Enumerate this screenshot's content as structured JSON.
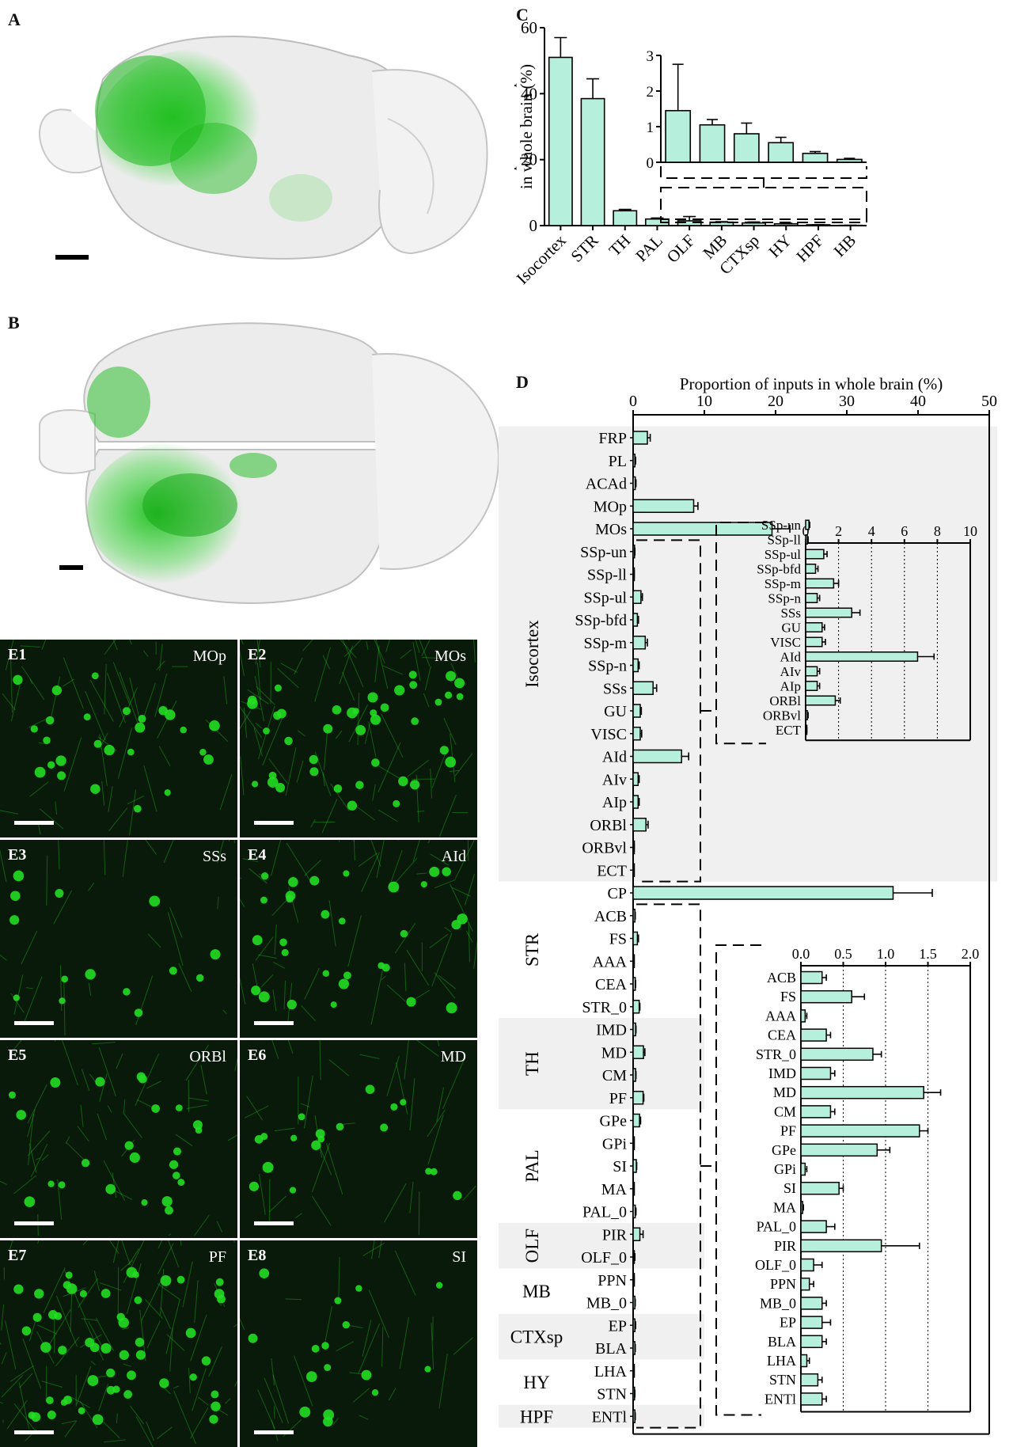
{
  "panels": {
    "a": "A",
    "b": "B",
    "c": "C",
    "d": "D"
  },
  "colors": {
    "bar_fill": "#b6f0dc",
    "bar_stroke": "#000000",
    "label_fill": "#f0f0f0",
    "neuron_green": "#22dd22",
    "micro_bg": "#0a1a0a"
  },
  "micrographs": [
    {
      "label": "E1",
      "region": "MOp"
    },
    {
      "label": "E2",
      "region": "MOs"
    },
    {
      "label": "E3",
      "region": "SSs"
    },
    {
      "label": "E4",
      "region": "AId"
    },
    {
      "label": "E5",
      "region": "ORBl"
    },
    {
      "label": "E6",
      "region": "MD"
    },
    {
      "label": "E7",
      "region": "PF"
    },
    {
      "label": "E8",
      "region": "SI"
    }
  ],
  "chart_data": [
    {
      "id": "C",
      "type": "bar",
      "ylabel": "Proportion of inputs in whole brain (%)",
      "ylabel_lines": [
        "Proportion of inputs",
        "in whole brain (%)"
      ],
      "ylim": [
        0,
        60
      ],
      "yticks": [
        0,
        20,
        40,
        60
      ],
      "categories": [
        "Isocortex",
        "STR",
        "TH",
        "PAL",
        "OLF",
        "MB",
        "CTXsp",
        "HY",
        "HPF",
        "HB"
      ],
      "values": [
        51,
        38.5,
        4.5,
        2,
        1.45,
        1.05,
        0.8,
        0.55,
        0.25,
        0.08
      ],
      "errors": [
        6,
        6,
        0.4,
        0.3,
        1.3,
        0.15,
        0.3,
        0.15,
        0.05,
        0.03
      ],
      "inset": {
        "ylim": [
          0,
          3
        ],
        "yticks": [
          0,
          1,
          2,
          3
        ],
        "categories": [
          "OLF",
          "MB",
          "CTXsp",
          "HY",
          "HPF",
          "HB"
        ],
        "values": [
          1.45,
          1.05,
          0.8,
          0.55,
          0.25,
          0.08
        ],
        "errors": [
          1.3,
          0.15,
          0.3,
          0.15,
          0.05,
          0.03
        ]
      }
    },
    {
      "id": "D",
      "type": "bar",
      "orientation": "horizontal",
      "xlabel": "Proportion of inputs in whole brain (%)",
      "xlim": [
        0,
        50
      ],
      "xticks": [
        0,
        10,
        20,
        30,
        40,
        50
      ],
      "rows": [
        {
          "label": "FRP",
          "value": 2.0,
          "error": 0.4
        },
        {
          "label": "PL",
          "value": 0.25,
          "error": 0.1
        },
        {
          "label": "ACAd",
          "value": 0.3,
          "error": 0.1
        },
        {
          "label": "MOp",
          "value": 8.5,
          "error": 0.6
        },
        {
          "label": "MOs",
          "value": 19.5,
          "error": 2.5
        },
        {
          "label": "SSp-un",
          "value": 0.2,
          "error": 0.05
        },
        {
          "label": "SSp-ll",
          "value": 0.1,
          "error": 0.05
        },
        {
          "label": "SSp-ul",
          "value": 1.1,
          "error": 0.2
        },
        {
          "label": "SSp-bfd",
          "value": 0.6,
          "error": 0.15
        },
        {
          "label": "SSp-m",
          "value": 1.7,
          "error": 0.3
        },
        {
          "label": "SSp-n",
          "value": 0.7,
          "error": 0.15
        },
        {
          "label": "SSs",
          "value": 2.8,
          "error": 0.5
        },
        {
          "label": "GU",
          "value": 1.0,
          "error": 0.15
        },
        {
          "label": "VISC",
          "value": 1.0,
          "error": 0.2
        },
        {
          "label": "AId",
          "value": 6.8,
          "error": 1.0
        },
        {
          "label": "AIv",
          "value": 0.7,
          "error": 0.15
        },
        {
          "label": "AIp",
          "value": 0.7,
          "error": 0.15
        },
        {
          "label": "ORBl",
          "value": 1.8,
          "error": 0.3
        },
        {
          "label": "ORBvl",
          "value": 0.1,
          "error": 0.05
        },
        {
          "label": "ECT",
          "value": 0.05,
          "error": 0.02
        },
        {
          "label": "CP",
          "value": 36.5,
          "error": 5.5
        },
        {
          "label": "ACB",
          "value": 0.25,
          "error": 0.05
        },
        {
          "label": "FS",
          "value": 0.6,
          "error": 0.15
        },
        {
          "label": "AAA",
          "value": 0.05,
          "error": 0.02
        },
        {
          "label": "CEA",
          "value": 0.3,
          "error": 0.05
        },
        {
          "label": "STR_0",
          "value": 0.85,
          "error": 0.1
        },
        {
          "label": "IMD",
          "value": 0.35,
          "error": 0.05
        },
        {
          "label": "MD",
          "value": 1.45,
          "error": 0.2
        },
        {
          "label": "CM",
          "value": 0.35,
          "error": 0.05
        },
        {
          "label": "PF",
          "value": 1.4,
          "error": 0.1
        },
        {
          "label": "GPe",
          "value": 0.9,
          "error": 0.15
        },
        {
          "label": "GPi",
          "value": 0.05,
          "error": 0.02
        },
        {
          "label": "SI",
          "value": 0.45,
          "error": 0.05
        },
        {
          "label": "MA",
          "value": 0.02,
          "error": 0.01
        },
        {
          "label": "PAL_0",
          "value": 0.3,
          "error": 0.1
        },
        {
          "label": "PIR",
          "value": 0.95,
          "error": 0.45
        },
        {
          "label": "OLF_0",
          "value": 0.15,
          "error": 0.1
        },
        {
          "label": "PPN",
          "value": 0.1,
          "error": 0.05
        },
        {
          "label": "MB_0",
          "value": 0.25,
          "error": 0.05
        },
        {
          "label": "EP",
          "value": 0.25,
          "error": 0.1
        },
        {
          "label": "BLA",
          "value": 0.25,
          "error": 0.05
        },
        {
          "label": "LHA",
          "value": 0.07,
          "error": 0.03
        },
        {
          "label": "STN",
          "value": 0.2,
          "error": 0.05
        },
        {
          "label": "ENTl",
          "value": 0.25,
          "error": 0.05
        }
      ],
      "groups": [
        {
          "name": "Isocortex",
          "from": 0,
          "to": 19,
          "shaded": true
        },
        {
          "name": "STR",
          "from": 20,
          "to": 25,
          "shaded": false
        },
        {
          "name": "TH",
          "from": 26,
          "to": 29,
          "shaded": true
        },
        {
          "name": "PAL",
          "from": 30,
          "to": 34,
          "shaded": false
        },
        {
          "name": "OLF",
          "from": 35,
          "to": 36,
          "shaded": true
        },
        {
          "name": "MB",
          "from": 37,
          "to": 38,
          "shaded": false
        },
        {
          "name": "CTXsp",
          "from": 39,
          "to": 40,
          "shaded": true
        },
        {
          "name": "HY",
          "from": 41,
          "to": 42,
          "shaded": false
        },
        {
          "name": "HPF",
          "from": 43,
          "to": 43,
          "shaded": true
        }
      ],
      "insets": [
        {
          "from": 5,
          "to": 19,
          "xlim": [
            0,
            10
          ],
          "xticks": [
            0,
            2,
            4,
            6,
            8,
            10
          ]
        },
        {
          "from": 21,
          "to": 43,
          "xlim": [
            0,
            2.0
          ],
          "xticks": [
            "0.0",
            "0.5",
            "1.0",
            "1.5",
            "2.0"
          ]
        }
      ]
    }
  ]
}
